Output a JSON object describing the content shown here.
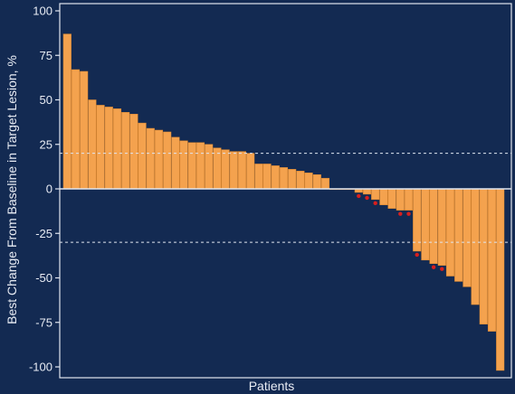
{
  "chart_data": {
    "type": "bar",
    "title": "",
    "xlabel": "Patients",
    "ylabel": "Best Change From Baseline in Target Lesion, %",
    "ylim": [
      -105,
      105
    ],
    "yticks": [
      "100",
      "75",
      "50",
      "25",
      "0",
      "-25",
      "-50",
      "-75",
      "-100"
    ],
    "reference_lines": [
      20,
      -30
    ],
    "grid": false,
    "colors": {
      "background": "#132a52",
      "bar": "#f4a24e",
      "bar_stroke": "#d9862e",
      "axis": "#dfe5ef",
      "reference_line": "#dfe5ef",
      "marker": "#d81e1e"
    },
    "marked_patients": [
      35,
      36,
      37,
      40,
      41,
      42,
      44,
      45
    ],
    "values": [
      87,
      67,
      66,
      50,
      47,
      46,
      45,
      43,
      42,
      37,
      34,
      33,
      32,
      29,
      27,
      26,
      26,
      25,
      23,
      22,
      21,
      21,
      20,
      14,
      14,
      13,
      12,
      11,
      10,
      9,
      8,
      6,
      0,
      0,
      0,
      -2,
      -3,
      -6,
      -9,
      -11,
      -12,
      -12,
      -35,
      -40,
      -42,
      -43,
      -49,
      -52,
      -55,
      -65,
      -76,
      -80,
      -102
    ]
  }
}
